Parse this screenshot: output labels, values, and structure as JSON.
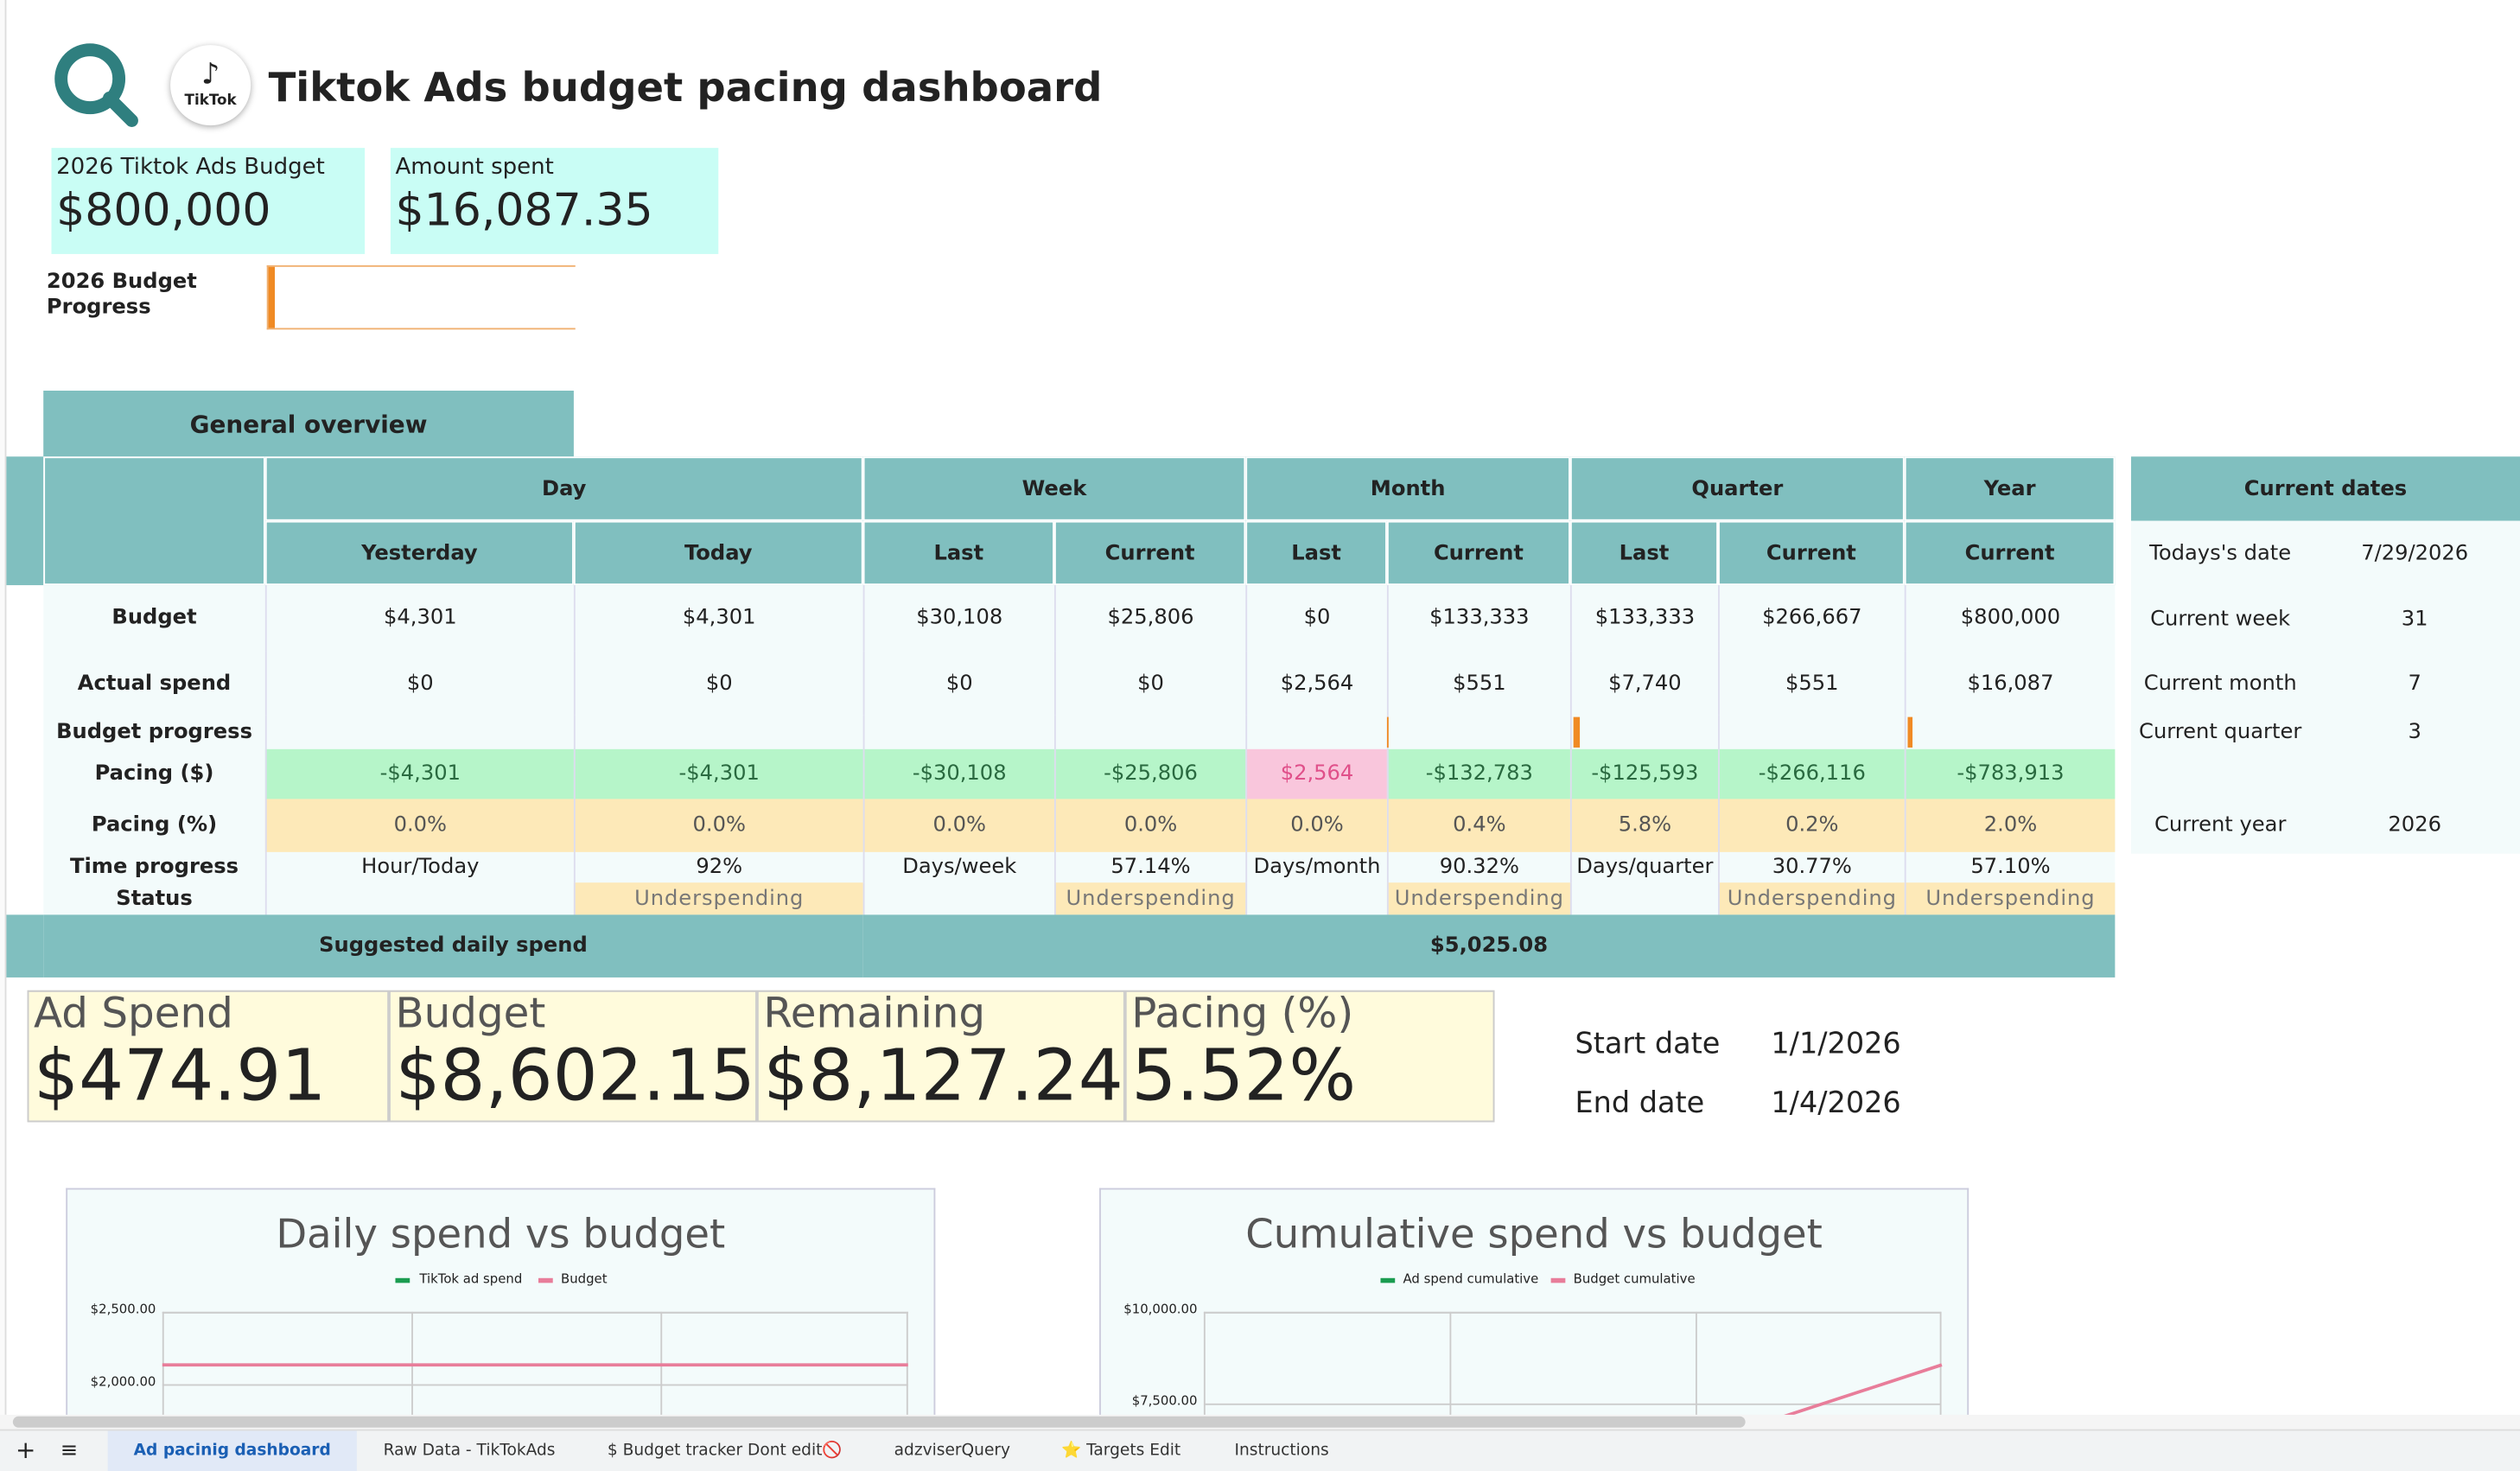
{
  "header": {
    "title": "Tiktok Ads budget pacing dashboard",
    "logo_text": "TikTok"
  },
  "kpis": [
    {
      "label": "2026 Tiktok Ads Budget",
      "value": "$800,000"
    },
    {
      "label": "Amount spent",
      "value": "$16,087.35"
    }
  ],
  "budget_progress_label": "2026  Budget Progress",
  "overview": {
    "title": "General overview",
    "groups": [
      "Day",
      "Week",
      "Month",
      "Quarter",
      "Year"
    ],
    "subheaders": [
      "Yesterday",
      "Today",
      "Last",
      "Current",
      "Last",
      "Current",
      "Last",
      "Current",
      "Current"
    ],
    "rows": [
      {
        "label": "Budget",
        "cells": [
          "$4,301",
          "$4,301",
          "$30,108",
          "$25,806",
          "$0",
          "$133,333",
          "$133,333",
          "$266,667",
          "$800,000"
        ]
      },
      {
        "label": "Actual spend",
        "cells": [
          "$0",
          "$0",
          "$0",
          "$0",
          "$2,564",
          "$551",
          "$7,740",
          "$551",
          "$16,087"
        ]
      },
      {
        "label": "Budget progress",
        "cells": [
          null,
          null,
          null,
          null,
          null,
          null,
          null,
          null,
          null
        ]
      },
      {
        "label": "Pacing ($)",
        "cells": [
          "-$4,301",
          "-$4,301",
          "-$30,108",
          "-$25,806",
          "$2,564",
          "-$132,783",
          "-$125,593",
          "-$266,116",
          "-$783,913"
        ]
      },
      {
        "label": "Pacing  (%)",
        "cells": [
          "0.0%",
          "0.0%",
          "0.0%",
          "0.0%",
          "0.0%",
          "0.4%",
          "5.8%",
          "0.2%",
          "2.0%"
        ]
      },
      {
        "label": "Time progress",
        "cells": [
          "Hour/Today",
          "92%",
          "Days/week",
          "57.14%",
          "Days/month",
          "90.32%",
          "Days/quarter",
          "30.77%",
          "57.10%"
        ]
      },
      {
        "label": "Status",
        "cells": [
          null,
          "Underspending",
          null,
          "Underspending",
          null,
          "Underspending",
          null,
          "Underspending",
          "Underspending"
        ]
      }
    ],
    "suggested": {
      "label": "Suggested daily spend",
      "value": "$5,025.08"
    }
  },
  "current_dates": {
    "title": "Current dates",
    "rows": [
      [
        "Todays's date",
        "7/29/2026"
      ],
      [
        "Current week",
        "31"
      ],
      [
        "Current month",
        "7"
      ],
      [
        "Current quarter",
        "3"
      ],
      [
        "Current year",
        "2026"
      ]
    ]
  },
  "summary": [
    {
      "label": "Ad Spend",
      "value": "$474.91"
    },
    {
      "label": "Budget",
      "value": "$8,602.15"
    },
    {
      "label": "Remaining",
      "value": "$8,127.24"
    },
    {
      "label": "Pacing (%)",
      "value": "5.52%"
    }
  ],
  "date_range": [
    {
      "label": "Start date",
      "value": "1/1/2026"
    },
    {
      "label": "End date",
      "value": "1/4/2026"
    }
  ],
  "charts": [
    {
      "title": "Daily spend vs budget",
      "legend": [
        "TikTok ad spend",
        "Budget"
      ],
      "yticks": [
        "$2,500.00",
        "$2,000.00"
      ]
    },
    {
      "title": "Cumulative spend vs budget",
      "legend": [
        "Ad spend cumulative",
        "Budget cumulative"
      ],
      "yticks": [
        "$10,000.00",
        "$7,500.00"
      ]
    }
  ],
  "sheet_tabs": [
    "Ad pacinig dashboard",
    "Raw Data - TikTokAds",
    "$ Budget tracker Dont edit🚫",
    "adzviserQuery",
    "⭐ Targets Edit",
    "Instructions"
  ]
}
